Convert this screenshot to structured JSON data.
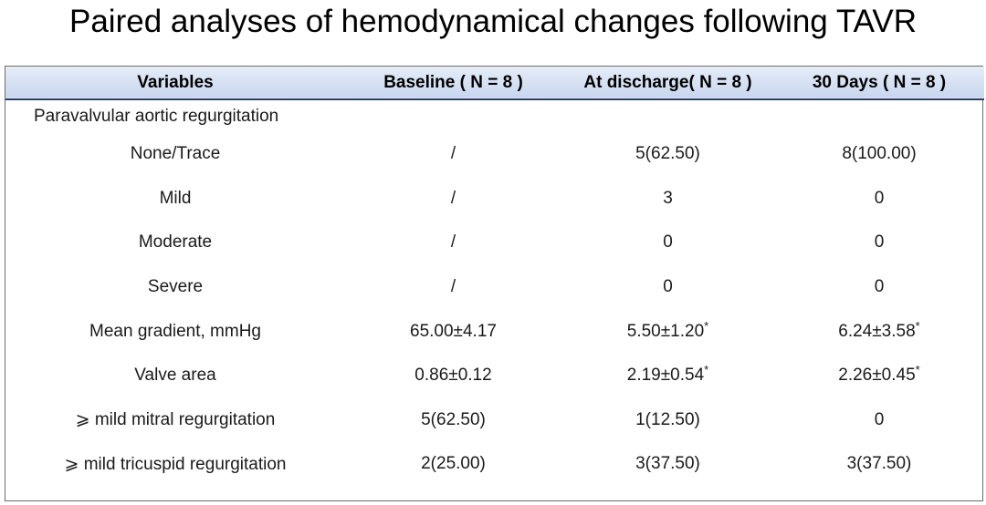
{
  "title": "Paired analyses of hemodynamical changes following TAVR",
  "table": {
    "headers": [
      "Variables",
      "Baseline ( N = 8 )",
      "At discharge( N = 8 )",
      "30 Days ( N = 8 )"
    ],
    "section_label": "Paravalvular aortic regurgitation",
    "rows": [
      {
        "variable": "None/Trace",
        "baseline": "/",
        "discharge": "5(62.50)",
        "discharge_sup": "",
        "days30": "8(100.00)",
        "days30_sup": ""
      },
      {
        "variable": "Mild",
        "baseline": "/",
        "discharge": "3",
        "discharge_sup": "",
        "days30": "0",
        "days30_sup": ""
      },
      {
        "variable": "Moderate",
        "baseline": "/",
        "discharge": "0",
        "discharge_sup": "",
        "days30": "0",
        "days30_sup": ""
      },
      {
        "variable": "Severe",
        "baseline": "/",
        "discharge": "0",
        "discharge_sup": "",
        "days30": "0",
        "days30_sup": ""
      },
      {
        "variable": "Mean gradient, mmHg",
        "baseline": "65.00±4.17",
        "discharge": "5.50±1.20",
        "discharge_sup": "*",
        "days30": "6.24±3.58",
        "days30_sup": "*"
      },
      {
        "variable": "Valve area",
        "baseline": "0.86±0.12",
        "discharge": "2.19±0.54",
        "discharge_sup": "*",
        "days30": "2.26±0.45",
        "days30_sup": "*"
      },
      {
        "variable": "⩾ mild mitral regurgitation",
        "baseline": "5(62.50)",
        "discharge": "1(12.50)",
        "discharge_sup": "",
        "days30": "0",
        "days30_sup": ""
      },
      {
        "variable": "⩾ mild tricuspid regurgitation",
        "baseline": "2(25.00)",
        "discharge": "3(37.50)",
        "discharge_sup": "",
        "days30": "3(37.50)",
        "days30_sup": ""
      }
    ]
  },
  "colors": {
    "header_bg_top": "#e6edf8",
    "header_bg_bottom": "#c8d6ee",
    "header_rule": "#2b3f66",
    "border": "#6b6b6b"
  }
}
